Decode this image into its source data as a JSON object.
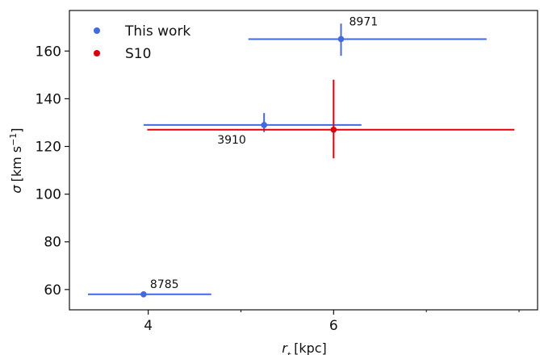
{
  "chart_data": {
    "type": "scatter",
    "xlabel_main": "r",
    "xlabel_sub": "t",
    "xlabel_unit": "[kpc]",
    "ylabel_main": "σ",
    "ylabel_unit": "[km s",
    "ylabel_exp": "−1",
    "ylabel_close": "]",
    "xlim": [
      3.15,
      8.2
    ],
    "ylim": [
      51.5,
      177
    ],
    "xticks": [
      4,
      6
    ],
    "xticks_minor": [
      5,
      7,
      8
    ],
    "yticks": [
      60,
      80,
      100,
      120,
      140,
      160
    ],
    "legend_position": "top-left",
    "series": [
      {
        "name": "This work",
        "color": "#4169e1",
        "points": [
          {
            "label": "8971",
            "x": 6.08,
            "y": 165,
            "xerr": [
              5.08,
              7.65
            ],
            "yerr": [
              158,
              171.5
            ]
          },
          {
            "label": "3910",
            "x": 5.25,
            "y": 129,
            "xerr": [
              3.95,
              6.3
            ],
            "yerr": [
              126,
              134
            ]
          },
          {
            "label": "8785",
            "x": 3.95,
            "y": 58,
            "xerr": [
              3.35,
              4.68
            ],
            "yerr": [
              58,
              58
            ]
          }
        ]
      },
      {
        "name": "S10",
        "color": "#e0000b",
        "points": [
          {
            "label": "",
            "x": 6.0,
            "y": 127,
            "xerr": [
              3.99,
              7.95
            ],
            "yerr": [
              115,
              148
            ]
          }
        ]
      }
    ]
  }
}
